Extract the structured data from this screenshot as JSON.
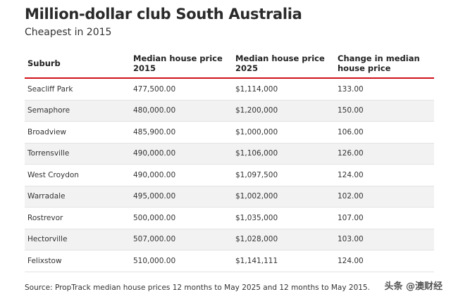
{
  "title": "Million-dollar club South Australia",
  "subtitle": "Cheapest in 2015",
  "table": {
    "headers": [
      "Suburb",
      "Median house price 2015",
      "Median house price 2025",
      "Change in median house price"
    ],
    "rows": [
      [
        "Seacliff Park",
        "477,500.00",
        "$1,114,000",
        "133.00"
      ],
      [
        "Semaphore",
        "480,000.00",
        "$1,200,000",
        "150.00"
      ],
      [
        "Broadview",
        "485,900.00",
        "$1,000,000",
        "106.00"
      ],
      [
        "Torrensville",
        "490,000.00",
        "$1,106,000",
        "126.00"
      ],
      [
        "West Croydon",
        "490,000.00",
        "$1,097,500",
        "124.00"
      ],
      [
        "Warradale",
        "495,000.00",
        "$1,002,000",
        "102.00"
      ],
      [
        "Rostrevor",
        "500,000.00",
        "$1,035,000",
        "107.00"
      ],
      [
        "Hectorville",
        "507,000.00",
        "$1,028,000",
        "103.00"
      ],
      [
        "Felixstow",
        "510,000.00",
        "$1,141,111",
        "124.00"
      ]
    ]
  },
  "source": "Source: PropTrack median house prices 12 months to May 2025 and 12 months to May 2015.",
  "watermark": "头条 @澳财经",
  "colors": {
    "header_rule": "#d0111b",
    "stripe": "#f2f2f2"
  }
}
